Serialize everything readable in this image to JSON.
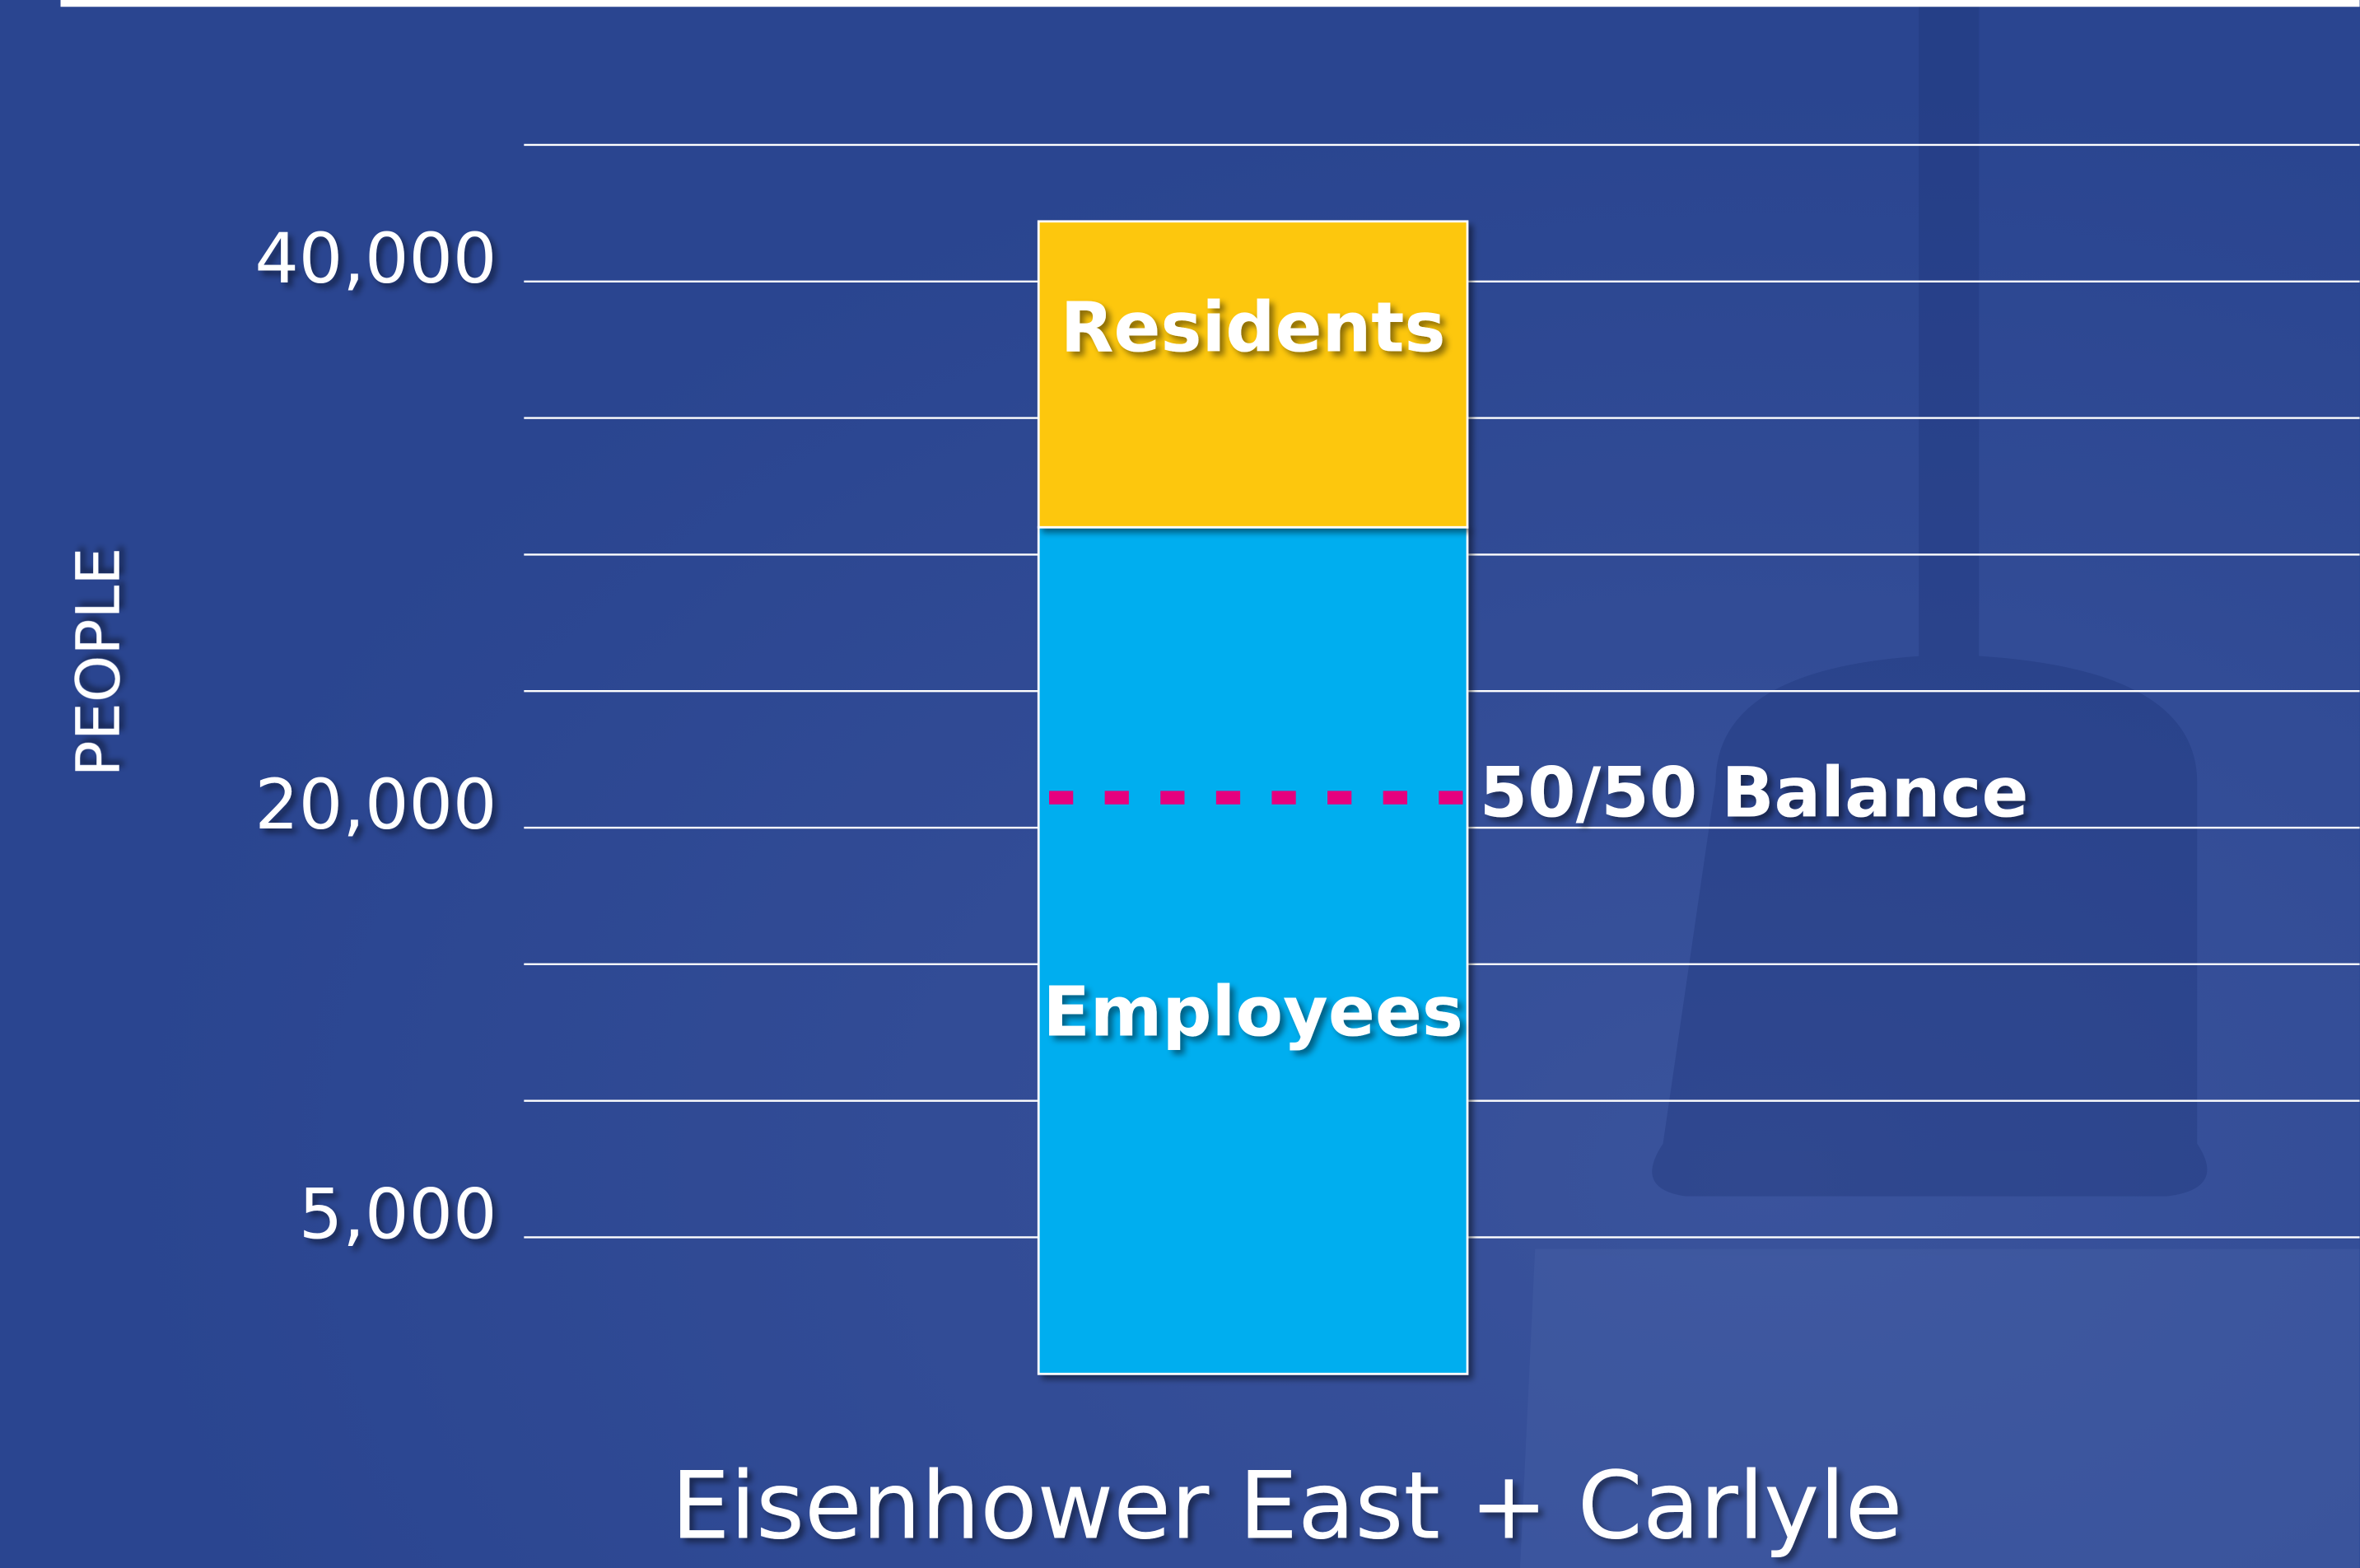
{
  "chart_data": {
    "type": "bar",
    "stacked": true,
    "categories": [
      "Eisenhower East + Carlyle"
    ],
    "ylabel": "PEOPLE",
    "series": [
      {
        "name": "Employees",
        "color": "#00aeef",
        "values": [
          31000
        ]
      },
      {
        "name": "Residents",
        "color": "#fdc70f",
        "values": [
          11200
        ]
      }
    ],
    "ylim": [
      0,
      47000
    ],
    "yticks": [
      {
        "value": 5000,
        "label": "5,000"
      },
      {
        "value": 20000,
        "label": "20,000"
      },
      {
        "value": 40000,
        "label": "40,000"
      }
    ],
    "gridlines": [
      5000,
      10000,
      15000,
      20000,
      25000,
      30000,
      35000,
      40000,
      45000
    ],
    "reference_line": {
      "label": "50/50 Balance",
      "value": 21100,
      "color": "#e6007e"
    }
  }
}
